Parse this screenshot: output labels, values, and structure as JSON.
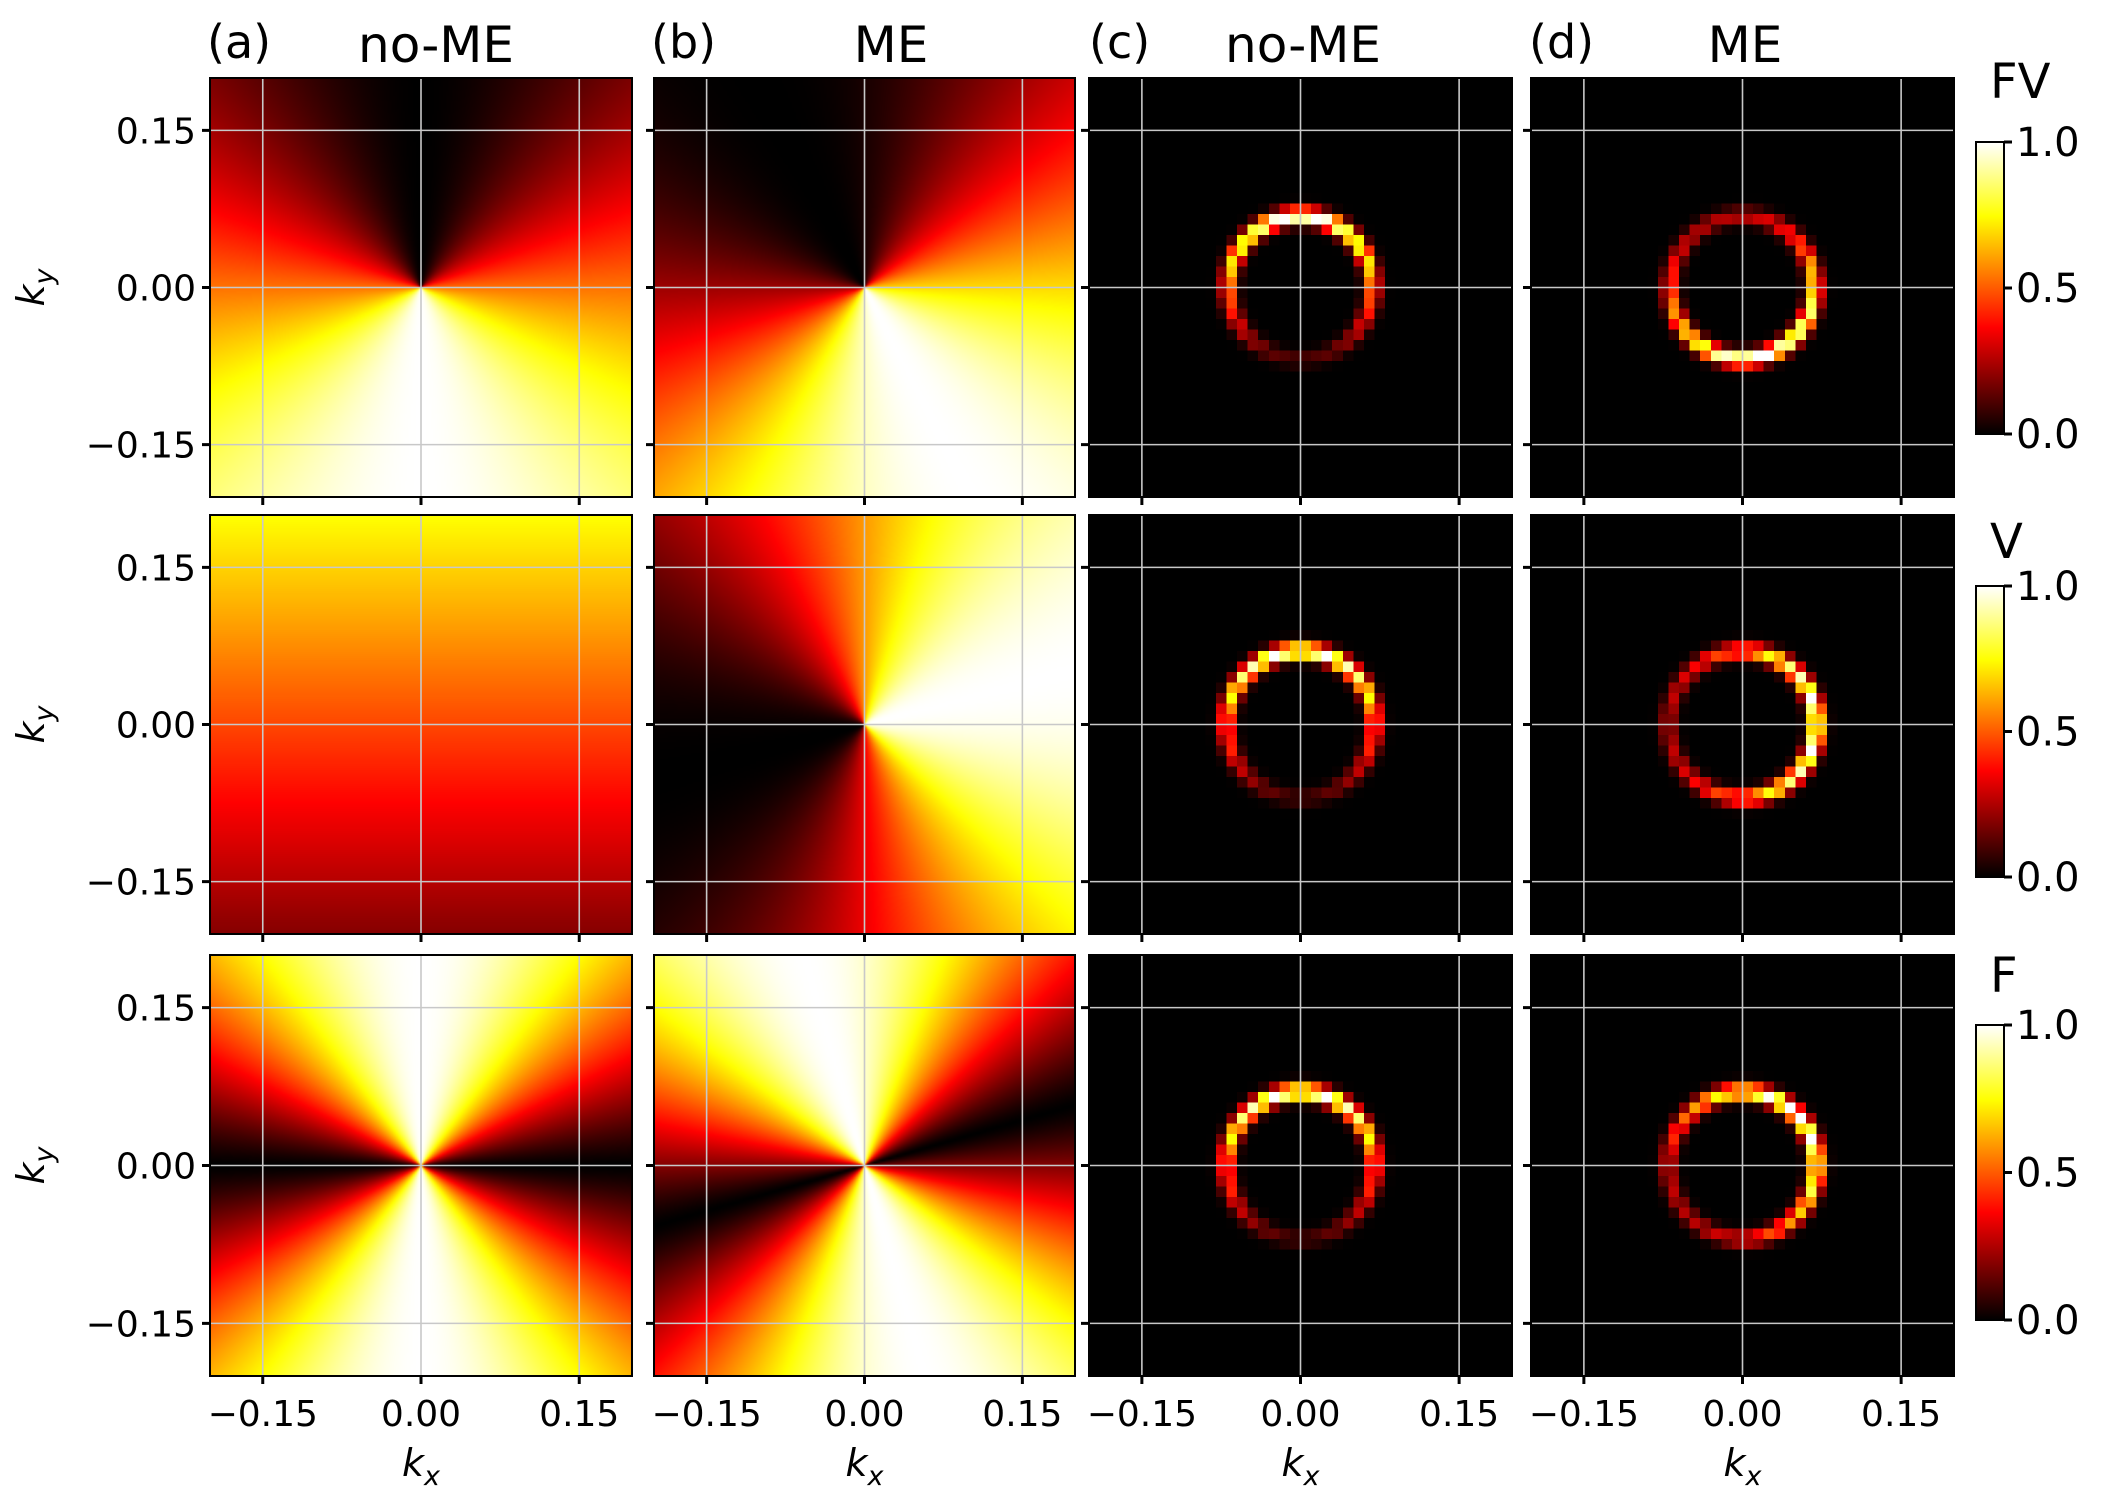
{
  "figure": {
    "panel_letters": [
      "(a)",
      "(b)",
      "(c)",
      "(d)"
    ],
    "column_titles": [
      "no-ME",
      "ME",
      "no-ME",
      "ME"
    ],
    "row_labels": [
      "FV",
      "V",
      "F"
    ]
  },
  "colorbar": {
    "ticks": [
      0.0,
      0.5,
      1.0
    ],
    "tick_labels": [
      "0.0",
      "0.5",
      "1.0"
    ],
    "colormap": "hot"
  },
  "colors": {
    "grid": "#c8c8c8",
    "frame": "#000000",
    "background": "#ffffff"
  },
  "chart_data": {
    "type": "heatmap",
    "xlabel_letter": "k",
    "xlabel_sub": "x",
    "ylabel_letter": "k",
    "ylabel_sub": "y",
    "xlim": [
      -0.2,
      0.2
    ],
    "ylim": [
      -0.2,
      0.2
    ],
    "ticks": [
      -0.15,
      0.0,
      0.15
    ],
    "tick_labels": [
      "−0.15",
      "0.00",
      "0.15"
    ],
    "value_range": [
      0.0,
      1.0
    ],
    "panels": [
      {
        "row": "FV",
        "column": "(a) no-ME",
        "kind": "angular-field",
        "description": "dark along +ky, bright along -ky"
      },
      {
        "row": "FV",
        "column": "(b) ME",
        "kind": "angular-field",
        "description": "bright toward -ky/+kx quadrant"
      },
      {
        "row": "FV",
        "column": "(c) no-ME",
        "kind": "ring",
        "ring_radius": 0.068,
        "ring_center": [
          0.0,
          0.0
        ],
        "peak_direction_deg": 90
      },
      {
        "row": "FV",
        "column": "(d) ME",
        "kind": "ring",
        "ring_radius": 0.068,
        "ring_center": [
          0.0,
          0.0
        ],
        "peak_direction_deg": 290
      },
      {
        "row": "V",
        "column": "(a) no-ME",
        "kind": "vertical-gradient",
        "top_value": 0.75,
        "bottom_value": 0.2
      },
      {
        "row": "V",
        "column": "(b) ME",
        "kind": "angular-field",
        "description": "bright toward +kx, dark toward -kx"
      },
      {
        "row": "V",
        "column": "(c) no-ME",
        "kind": "ring",
        "ring_radius": 0.07,
        "ring_center": [
          0.0,
          0.0
        ],
        "peak_direction_deg": 90
      },
      {
        "row": "V",
        "column": "(d) ME",
        "kind": "ring",
        "ring_radius": 0.07,
        "ring_center": [
          0.0,
          0.0
        ],
        "peak_direction_deg": 0
      },
      {
        "row": "F",
        "column": "(a) no-ME",
        "kind": "angular-field",
        "description": "two-fold, bright along ky axis, dark along kx axis"
      },
      {
        "row": "F",
        "column": "(b) ME",
        "kind": "angular-field",
        "description": "two-fold, rotated toward +kx/+ky diagonal"
      },
      {
        "row": "F",
        "column": "(c) no-ME",
        "kind": "ring",
        "ring_radius": 0.07,
        "ring_center": [
          0.0,
          0.0
        ],
        "peak_direction_deg": 90
      },
      {
        "row": "F",
        "column": "(d) ME",
        "kind": "ring",
        "ring_radius": 0.07,
        "ring_center": [
          0.0,
          0.0
        ],
        "peak_direction_deg": 40
      }
    ]
  }
}
